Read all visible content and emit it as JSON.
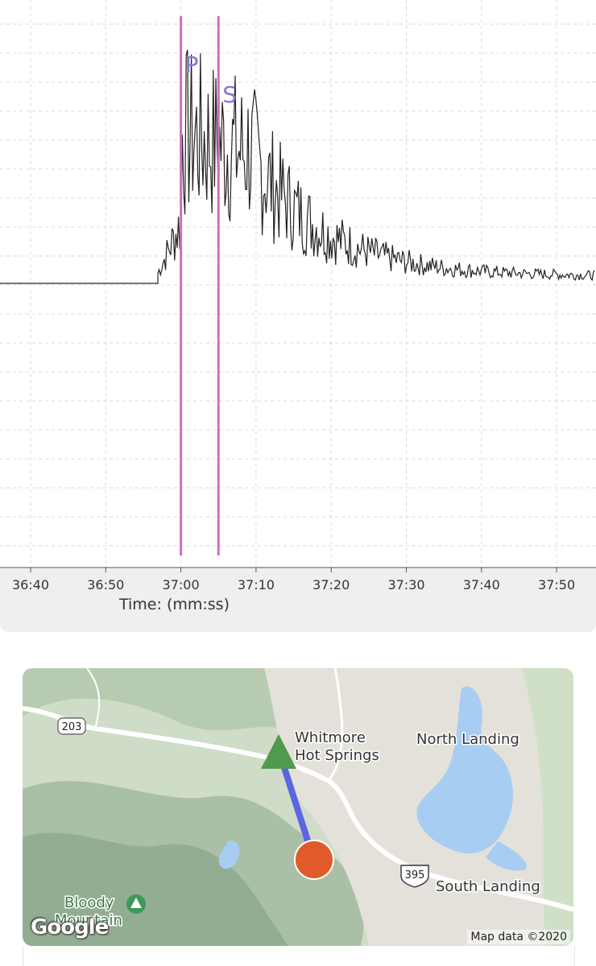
{
  "seismogram": {
    "phase_markers": [
      {
        "label": "P",
        "time": "37:00",
        "color": "#d56bbd",
        "label_color": "#8a72d6"
      },
      {
        "label": "S",
        "time": "37:05",
        "color": "#d56bbd",
        "label_color": "#8a72d6"
      }
    ],
    "x_ticks": [
      "36:40",
      "36:50",
      "37:00",
      "37:10",
      "37:20",
      "37:30",
      "37:40",
      "37:50"
    ],
    "x_axis_label": "Time: (mm:ss)",
    "trace_color": "#222222"
  },
  "map": {
    "place_labels": {
      "whitmore": "Whitmore\nHot Springs",
      "north_landing": "North Landing",
      "south_landing": "South Landing",
      "bloody_mountain": "Bloody\nMountain"
    },
    "route_shields": {
      "r203": "203",
      "r395": "395"
    },
    "markers": {
      "station": {
        "icon": "triangle-station-icon",
        "color": "#4f9a4f"
      },
      "epicenter": {
        "icon": "circle-epicenter-icon",
        "color": "#e05a2a"
      },
      "path_color": "#5b66e0"
    },
    "google_logo": "Google",
    "attribution": "Map data ©2020"
  }
}
